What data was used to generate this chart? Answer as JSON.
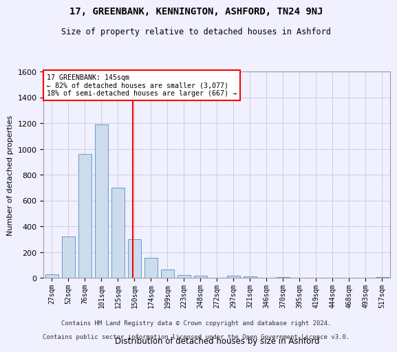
{
  "title": "17, GREENBANK, KENNINGTON, ASHFORD, TN24 9NJ",
  "subtitle": "Size of property relative to detached houses in Ashford",
  "xlabel": "Distribution of detached houses by size in Ashford",
  "ylabel": "Number of detached properties",
  "categories": [
    "27sqm",
    "52sqm",
    "76sqm",
    "101sqm",
    "125sqm",
    "150sqm",
    "174sqm",
    "199sqm",
    "223sqm",
    "248sqm",
    "272sqm",
    "297sqm",
    "321sqm",
    "346sqm",
    "370sqm",
    "395sqm",
    "419sqm",
    "444sqm",
    "468sqm",
    "493sqm",
    "517sqm"
  ],
  "values": [
    30,
    325,
    965,
    1190,
    700,
    300,
    155,
    65,
    25,
    20,
    0,
    20,
    15,
    0,
    10,
    0,
    0,
    0,
    0,
    0,
    10
  ],
  "bar_color": "#ccdcec",
  "bar_edge_color": "#6699cc",
  "annotation_line1": "17 GREENBANK: 145sqm",
  "annotation_line2": "← 82% of detached houses are smaller (3,077)",
  "annotation_line3": "18% of semi-detached houses are larger (667) →",
  "ylim": [
    0,
    1600
  ],
  "yticks": [
    0,
    200,
    400,
    600,
    800,
    1000,
    1200,
    1400,
    1600
  ],
  "background_color": "#f0f0ff",
  "grid_color": "#ccccdd",
  "footer_line1": "Contains HM Land Registry data © Crown copyright and database right 2024.",
  "footer_line2": "Contains public sector information licensed under the Open Government Licence v3.0."
}
